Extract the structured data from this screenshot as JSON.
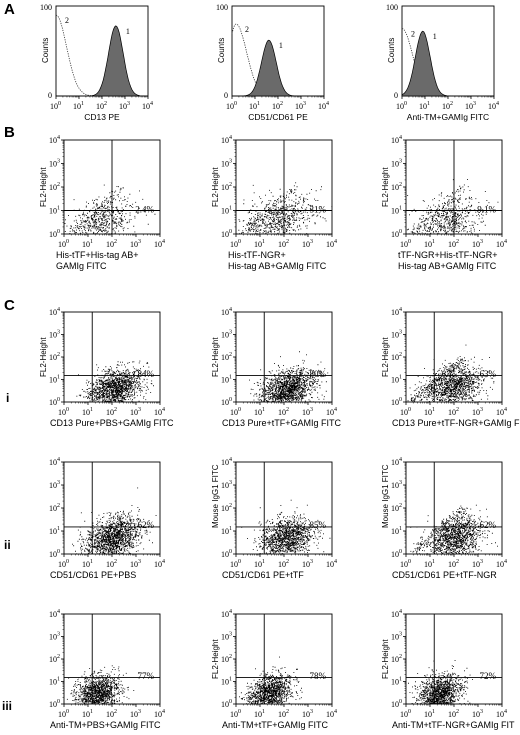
{
  "panel_labels": {
    "A": "A",
    "B": "B",
    "C": "C"
  },
  "row_labels": {
    "i": "i",
    "ii": "ii",
    "iii": "iii"
  },
  "chart_data": [
    {
      "panel": "A",
      "type": "area",
      "subtype": "histogram",
      "xlabel": "CD13 PE",
      "ylabel": "Counts",
      "xscale": "log",
      "xlim": [
        1,
        10000
      ],
      "xticks": [
        "10^0",
        "10^1",
        "10^2",
        "10^3",
        "10^4"
      ],
      "ylim": [
        0,
        100
      ],
      "yticks": [
        "0",
        "100"
      ],
      "series": [
        {
          "name": "2",
          "style": "dotted",
          "mode": 1.0,
          "peak_y": 90
        },
        {
          "name": "1",
          "style": "filled",
          "mode": 400,
          "peak_y": 78
        }
      ]
    },
    {
      "panel": "A",
      "type": "area",
      "subtype": "histogram",
      "xlabel": "CD51/CD61 PE",
      "ylabel": "Counts",
      "xscale": "log",
      "xlim": [
        1,
        10000
      ],
      "xticks": [
        "10^0",
        "10^1",
        "10^2",
        "10^3",
        "10^4"
      ],
      "ylim": [
        0,
        100
      ],
      "yticks": [
        "0",
        "100"
      ],
      "series": [
        {
          "name": "2",
          "style": "dotted",
          "mode": 1.5,
          "peak_y": 80
        },
        {
          "name": "1",
          "style": "filled",
          "mode": 40,
          "peak_y": 62
        }
      ]
    },
    {
      "panel": "A",
      "type": "area",
      "subtype": "histogram",
      "xlabel": "Anti-TM+GAMIg FITC",
      "ylabel": "Counts",
      "xscale": "log",
      "xlim": [
        1,
        10000
      ],
      "xticks": [
        "10^0",
        "10^1",
        "10^2",
        "10^3",
        "10^4"
      ],
      "ylim": [
        0,
        100
      ],
      "yticks": [
        "0",
        "100"
      ],
      "series": [
        {
          "name": "2",
          "style": "dotted",
          "mode": 1.0,
          "peak_y": 75
        },
        {
          "name": "1",
          "style": "filled",
          "mode": 8,
          "peak_y": 72
        }
      ]
    },
    {
      "panel": "B",
      "type": "scatter",
      "ylabel": "FL2-Height",
      "caption": [
        "His-tTF+His-tag AB+",
        "GAMIg FITC"
      ],
      "percent": "2.4%",
      "xlim": [
        1,
        10000
      ],
      "ylim": [
        1,
        10000
      ],
      "gate": {
        "x": 100,
        "y": 10
      },
      "cloud": {
        "cx": 30,
        "cy": 3,
        "sx": 0.7,
        "sy": 0.5,
        "n": 650,
        "diag": true
      }
    },
    {
      "panel": "B",
      "type": "scatter",
      "ylabel": "FL2-Height",
      "caption": [
        "His-tTF-NGR+",
        "His-tag AB+GAMIg FITC"
      ],
      "percent": "31%",
      "xlim": [
        1,
        10000
      ],
      "ylim": [
        1,
        10000
      ],
      "gate": {
        "x": 100,
        "y": 10
      },
      "cloud": {
        "cx": 60,
        "cy": 4,
        "sx": 0.7,
        "sy": 0.5,
        "n": 800,
        "diag": true
      }
    },
    {
      "panel": "B",
      "type": "scatter",
      "ylabel": "FL2-Height",
      "caption": [
        "tTF-NGR+His-tTF-NGR+",
        "His-tag AB+GAMIg FITC"
      ],
      "percent": "9.1%",
      "xlim": [
        1,
        10000
      ],
      "ylim": [
        1,
        10000
      ],
      "gate": {
        "x": 100,
        "y": 10
      },
      "cloud": {
        "cx": 50,
        "cy": 3,
        "sx": 0.7,
        "sy": 0.5,
        "n": 750,
        "diag": true
      }
    },
    {
      "panel": "C",
      "row": "i",
      "type": "scatter",
      "ylabel": "FL2-Height",
      "caption": [
        "CD13 Pure+PBS+GAMIg FITC"
      ],
      "percent": "84%",
      "xlim": [
        1,
        10000
      ],
      "ylim": [
        1,
        10000
      ],
      "gate": {
        "x": 15,
        "y": 15
      },
      "cloud": {
        "cx": 120,
        "cy": 4,
        "sx": 0.55,
        "sy": 0.4,
        "n": 1500,
        "diag": false
      }
    },
    {
      "panel": "C",
      "row": "i",
      "type": "scatter",
      "ylabel": "FL2-Height",
      "caption": [
        "CD13 Pure+tTF+GAMIg FITC"
      ],
      "percent": "80%",
      "xlim": [
        1,
        10000
      ],
      "ylim": [
        1,
        10000
      ],
      "gate": {
        "x": 15,
        "y": 15
      },
      "cloud": {
        "cx": 140,
        "cy": 4,
        "sx": 0.55,
        "sy": 0.4,
        "n": 1500,
        "diag": false
      }
    },
    {
      "panel": "C",
      "row": "i",
      "type": "scatter",
      "ylabel": "FL2-Height",
      "caption": [
        "CD13 Pure+tTF-NGR+GAMIg FITC"
      ],
      "percent": "63%",
      "xlim": [
        1,
        10000
      ],
      "ylim": [
        1,
        10000
      ],
      "gate": {
        "x": 15,
        "y": 15
      },
      "cloud": {
        "cx": 90,
        "cy": 5,
        "sx": 0.6,
        "sy": 0.45,
        "n": 1400,
        "diag": true
      }
    },
    {
      "panel": "C",
      "row": "ii",
      "type": "scatter",
      "ylabel": "",
      "caption": [
        "CD51/CD61 PE+PBS"
      ],
      "percent": "62%",
      "xlim": [
        1,
        10000
      ],
      "ylim": [
        1,
        10000
      ],
      "gate": {
        "x": 15,
        "y": 15
      },
      "cloud": {
        "cx": 100,
        "cy": 5,
        "sx": 0.55,
        "sy": 0.45,
        "n": 1500,
        "diag": false
      }
    },
    {
      "panel": "C",
      "row": "ii",
      "type": "scatter",
      "ylabel": "Mouse IgG1 FITC",
      "caption": [
        "CD51/CD61 PE+tTF"
      ],
      "percent": "85%",
      "xlim": [
        1,
        10000
      ],
      "ylim": [
        1,
        10000
      ],
      "gate": {
        "x": 15,
        "y": 15
      },
      "cloud": {
        "cx": 120,
        "cy": 5,
        "sx": 0.55,
        "sy": 0.45,
        "n": 1300,
        "diag": false
      }
    },
    {
      "panel": "C",
      "row": "ii",
      "type": "scatter",
      "ylabel": "Mouse IgG1 FITC",
      "caption": [
        "CD51/CD61 PE+tTF-NGR"
      ],
      "percent": "62%",
      "xlim": [
        1,
        10000
      ],
      "ylim": [
        1,
        10000
      ],
      "gate": {
        "x": 15,
        "y": 15
      },
      "cloud": {
        "cx": 110,
        "cy": 5,
        "sx": 0.55,
        "sy": 0.45,
        "n": 1400,
        "diag": true
      }
    },
    {
      "panel": "C",
      "row": "iii",
      "type": "scatter",
      "ylabel": "",
      "caption": [
        "Anti-TM+PBS+GAMIg FITC"
      ],
      "percent": "77%",
      "xlim": [
        1,
        10000
      ],
      "ylim": [
        1,
        10000
      ],
      "gate": {
        "x": 15,
        "y": 15
      },
      "cloud": {
        "cx": 25,
        "cy": 3,
        "sx": 0.45,
        "sy": 0.4,
        "n": 1300,
        "diag": false
      }
    },
    {
      "panel": "C",
      "row": "iii",
      "type": "scatter",
      "ylabel": "FL2-Height",
      "caption": [
        "Anti-TM+tTF+GAMIg FITC"
      ],
      "percent": "78%",
      "xlim": [
        1,
        10000
      ],
      "ylim": [
        1,
        10000
      ],
      "gate": {
        "x": 15,
        "y": 15
      },
      "cloud": {
        "cx": 25,
        "cy": 3,
        "sx": 0.45,
        "sy": 0.4,
        "n": 1300,
        "diag": false
      }
    },
    {
      "panel": "C",
      "row": "iii",
      "type": "scatter",
      "ylabel": "FL2-Height",
      "caption": [
        "Anti-TM+tTF-NGR+GAMIg FIT"
      ],
      "percent": "72%",
      "xlim": [
        1,
        10000
      ],
      "ylim": [
        1,
        10000
      ],
      "gate": {
        "x": 15,
        "y": 15
      },
      "cloud": {
        "cx": 25,
        "cy": 3,
        "sx": 0.45,
        "sy": 0.4,
        "n": 1300,
        "diag": false
      }
    }
  ]
}
